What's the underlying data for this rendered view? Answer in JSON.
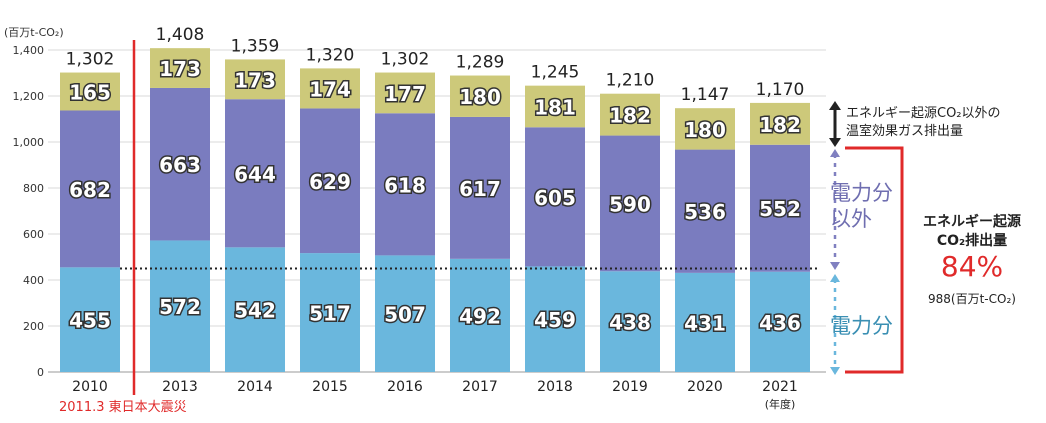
{
  "chart_data": {
    "type": "bar",
    "stacked": true,
    "unit_label": "(百万t-CO₂)",
    "categories": [
      "2010",
      "2013",
      "2014",
      "2015",
      "2016",
      "2017",
      "2018",
      "2019",
      "2020",
      "2021"
    ],
    "category_suffix": "(年度)",
    "ylim": [
      0,
      1400
    ],
    "yticks": [
      0,
      200,
      400,
      600,
      800,
      "1,000",
      "1,200",
      "1,400"
    ],
    "ytick_values": [
      0,
      200,
      400,
      600,
      800,
      1000,
      1200,
      1400
    ],
    "series": [
      {
        "name": "電力分",
        "color": "#6ab7dd",
        "values": [
          455,
          572,
          542,
          517,
          507,
          492,
          459,
          438,
          431,
          436
        ]
      },
      {
        "name": "電力分以外",
        "color": "#7a7cbf",
        "values": [
          682,
          663,
          644,
          629,
          618,
          617,
          605,
          590,
          536,
          552
        ]
      },
      {
        "name": "エネルギー起源CO₂以外の温室効果ガス排出量",
        "color": "#cdc97a",
        "values": [
          165,
          173,
          173,
          174,
          177,
          180,
          181,
          182,
          180,
          182
        ]
      }
    ],
    "totals": [
      "1,302",
      "1,408",
      "1,359",
      "1,320",
      "1,302",
      "1,289",
      "1,245",
      "1,210",
      "1,147",
      "1,170"
    ],
    "reference_line_value": 450,
    "event_marker": {
      "after_category": "2010",
      "label": "2011.3 東日本大震災",
      "color": "#e02a2a"
    }
  },
  "annotations": {
    "other_ghg_line1": "エネルギー起源CO₂以外の",
    "other_ghg_line2": "温室効果ガス排出量",
    "non_power_line1": "電力分",
    "non_power_line2": "以外",
    "power_label": "電力分",
    "energy_title": "エネルギー起源",
    "energy_subtitle": "CO₂排出量",
    "energy_share": "84%",
    "energy_amount": "988(百万t-CO₂)"
  }
}
